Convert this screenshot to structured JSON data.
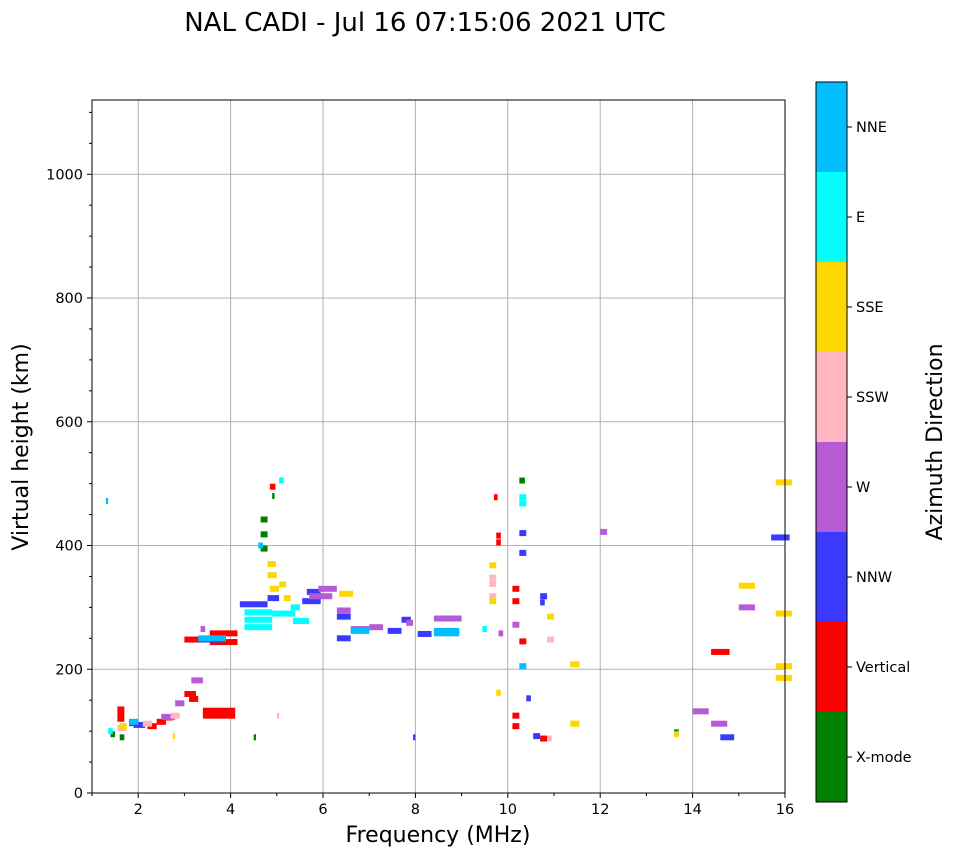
{
  "chart_data": {
    "type": "scatter",
    "title": "NAL CADI - Jul 16 07:15:06 2021 UTC",
    "xlabel": "Frequency (MHz)",
    "ylabel": "Virtual height (km)",
    "xlim": [
      1.0,
      16.0
    ],
    "ylim": [
      0,
      1120
    ],
    "x_ticks": [
      2,
      4,
      6,
      8,
      10,
      12,
      14,
      16
    ],
    "y_ticks": [
      0,
      200,
      400,
      600,
      800,
      1000
    ],
    "grid": true,
    "colorbar": {
      "title": "Azimuth Direction",
      "categories": [
        {
          "label": "X-mode",
          "color": "#008000"
        },
        {
          "label": "Vertical",
          "color": "#ff0000"
        },
        {
          "label": "NNW",
          "color": "#3a3aff"
        },
        {
          "label": "W",
          "color": "#b65bd6"
        },
        {
          "label": "SSW",
          "color": "#ffb6c1"
        },
        {
          "label": "SSE",
          "color": "#ffd700"
        },
        {
          "label": "E",
          "color": "#00ffff"
        },
        {
          "label": "NNE",
          "color": "#00bfff"
        }
      ]
    },
    "series": [
      {
        "name": "Vertical",
        "color": "#ff0000",
        "points": [
          [
            1.55,
            135,
            0.15
          ],
          [
            1.55,
            128,
            0.15
          ],
          [
            1.55,
            120,
            0.15
          ],
          [
            1.8,
            113,
            0.2
          ],
          [
            2.2,
            108,
            0.2
          ],
          [
            2.4,
            115,
            0.2
          ],
          [
            2.6,
            122,
            0.15
          ],
          [
            3.0,
            248,
            0.35
          ],
          [
            3.0,
            160,
            0.25
          ],
          [
            3.1,
            152,
            0.2
          ],
          [
            3.4,
            125,
            0.7
          ],
          [
            3.4,
            133,
            0.7
          ],
          [
            3.55,
            258,
            0.6
          ],
          [
            3.55,
            244,
            0.6
          ],
          [
            4.85,
            495,
            0.12
          ],
          [
            9.7,
            478,
            0.08
          ],
          [
            9.75,
            416,
            0.1
          ],
          [
            9.75,
            405,
            0.1
          ],
          [
            10.1,
            330,
            0.15
          ],
          [
            10.1,
            310,
            0.15
          ],
          [
            10.1,
            125,
            0.15
          ],
          [
            10.1,
            108,
            0.15
          ],
          [
            10.25,
            245,
            0.15
          ],
          [
            10.7,
            88,
            0.15
          ],
          [
            14.4,
            228,
            0.4
          ]
        ]
      },
      {
        "name": "X-mode",
        "color": "#008000",
        "points": [
          [
            1.4,
            95,
            0.1
          ],
          [
            1.6,
            90,
            0.1
          ],
          [
            4.65,
            442,
            0.15
          ],
          [
            4.65,
            418,
            0.15
          ],
          [
            4.65,
            395,
            0.15
          ],
          [
            4.9,
            480,
            0.05
          ],
          [
            4.5,
            90,
            0.05
          ],
          [
            10.25,
            505,
            0.12
          ],
          [
            13.6,
            98,
            0.1
          ]
        ]
      },
      {
        "name": "NNW",
        "color": "#3a3aff",
        "points": [
          [
            1.9,
            110,
            0.25
          ],
          [
            3.3,
            248,
            0.5
          ],
          [
            4.2,
            305,
            0.6
          ],
          [
            4.8,
            315,
            0.25
          ],
          [
            5.55,
            310,
            0.4
          ],
          [
            5.65,
            325,
            0.3
          ],
          [
            6.3,
            285,
            0.3
          ],
          [
            6.3,
            250,
            0.3
          ],
          [
            7.4,
            262,
            0.3
          ],
          [
            7.7,
            280,
            0.2
          ],
          [
            7.95,
            90,
            0.05
          ],
          [
            8.05,
            257,
            0.3
          ],
          [
            10.25,
            388,
            0.15
          ],
          [
            10.25,
            420,
            0.15
          ],
          [
            10.4,
            153,
            0.1
          ],
          [
            10.55,
            92,
            0.15
          ],
          [
            10.7,
            318,
            0.15
          ],
          [
            10.7,
            308,
            0.1
          ],
          [
            14.6,
            90,
            0.3
          ],
          [
            15.7,
            413,
            0.4
          ]
        ]
      },
      {
        "name": "W",
        "color": "#b65bd6",
        "points": [
          [
            2.5,
            123,
            0.3
          ],
          [
            2.8,
            145,
            0.2
          ],
          [
            3.15,
            182,
            0.25
          ],
          [
            3.35,
            265,
            0.1
          ],
          [
            5.9,
            330,
            0.4
          ],
          [
            5.7,
            318,
            0.5
          ],
          [
            6.3,
            295,
            0.3
          ],
          [
            6.6,
            265,
            0.4
          ],
          [
            7.0,
            268,
            0.3
          ],
          [
            7.8,
            275,
            0.15
          ],
          [
            8.4,
            282,
            0.6
          ],
          [
            9.8,
            258,
            0.1
          ],
          [
            10.1,
            272,
            0.15
          ],
          [
            12.0,
            422,
            0.15
          ],
          [
            14.0,
            132,
            0.35
          ],
          [
            14.4,
            112,
            0.35
          ],
          [
            15.0,
            300,
            0.35
          ]
        ]
      },
      {
        "name": "SSW",
        "color": "#ffb6c1",
        "points": [
          [
            1.55,
            105,
            0.2
          ],
          [
            2.1,
            112,
            0.2
          ],
          [
            2.7,
            125,
            0.2
          ],
          [
            5.0,
            125,
            0.05
          ],
          [
            9.6,
            348,
            0.15
          ],
          [
            9.6,
            338,
            0.15
          ],
          [
            9.6,
            318,
            0.15
          ],
          [
            10.85,
            248,
            0.15
          ],
          [
            10.85,
            88,
            0.1
          ]
        ]
      },
      {
        "name": "SSE",
        "color": "#ffd700",
        "points": [
          [
            1.6,
            108,
            0.15
          ],
          [
            2.75,
            92,
            0.05
          ],
          [
            4.8,
            370,
            0.18
          ],
          [
            4.8,
            352,
            0.2
          ],
          [
            4.85,
            330,
            0.2
          ],
          [
            5.05,
            337,
            0.15
          ],
          [
            5.15,
            315,
            0.15
          ],
          [
            4.7,
            280,
            0.15
          ],
          [
            6.35,
            322,
            0.3
          ],
          [
            9.6,
            368,
            0.15
          ],
          [
            9.6,
            310,
            0.15
          ],
          [
            9.75,
            162,
            0.1
          ],
          [
            10.85,
            285,
            0.15
          ],
          [
            11.35,
            208,
            0.2
          ],
          [
            11.35,
            112,
            0.2
          ],
          [
            13.6,
            95,
            0.1
          ],
          [
            15.0,
            335,
            0.35
          ],
          [
            15.8,
            502,
            0.35
          ],
          [
            15.8,
            290,
            0.35
          ],
          [
            15.8,
            205,
            0.35
          ],
          [
            15.8,
            186,
            0.35
          ]
        ]
      },
      {
        "name": "E",
        "color": "#00ffff",
        "points": [
          [
            1.35,
            100,
            0.1
          ],
          [
            4.3,
            280,
            0.6
          ],
          [
            4.3,
            268,
            0.6
          ],
          [
            4.3,
            292,
            0.6
          ],
          [
            4.9,
            290,
            0.5
          ],
          [
            5.05,
            505,
            0.1
          ],
          [
            5.35,
            278,
            0.35
          ],
          [
            5.3,
            300,
            0.2
          ],
          [
            10.25,
            478,
            0.15
          ],
          [
            10.25,
            468,
            0.15
          ],
          [
            9.45,
            265,
            0.1
          ]
        ]
      },
      {
        "name": "NNE",
        "color": "#00bfff",
        "points": [
          [
            1.3,
            472,
            0.05
          ],
          [
            1.8,
            115,
            0.2
          ],
          [
            3.3,
            250,
            0.6
          ],
          [
            4.6,
            400,
            0.1
          ],
          [
            6.6,
            262,
            0.4
          ],
          [
            8.4,
            258,
            0.55
          ],
          [
            8.4,
            262,
            0.55
          ],
          [
            10.25,
            205,
            0.15
          ]
        ]
      }
    ]
  }
}
